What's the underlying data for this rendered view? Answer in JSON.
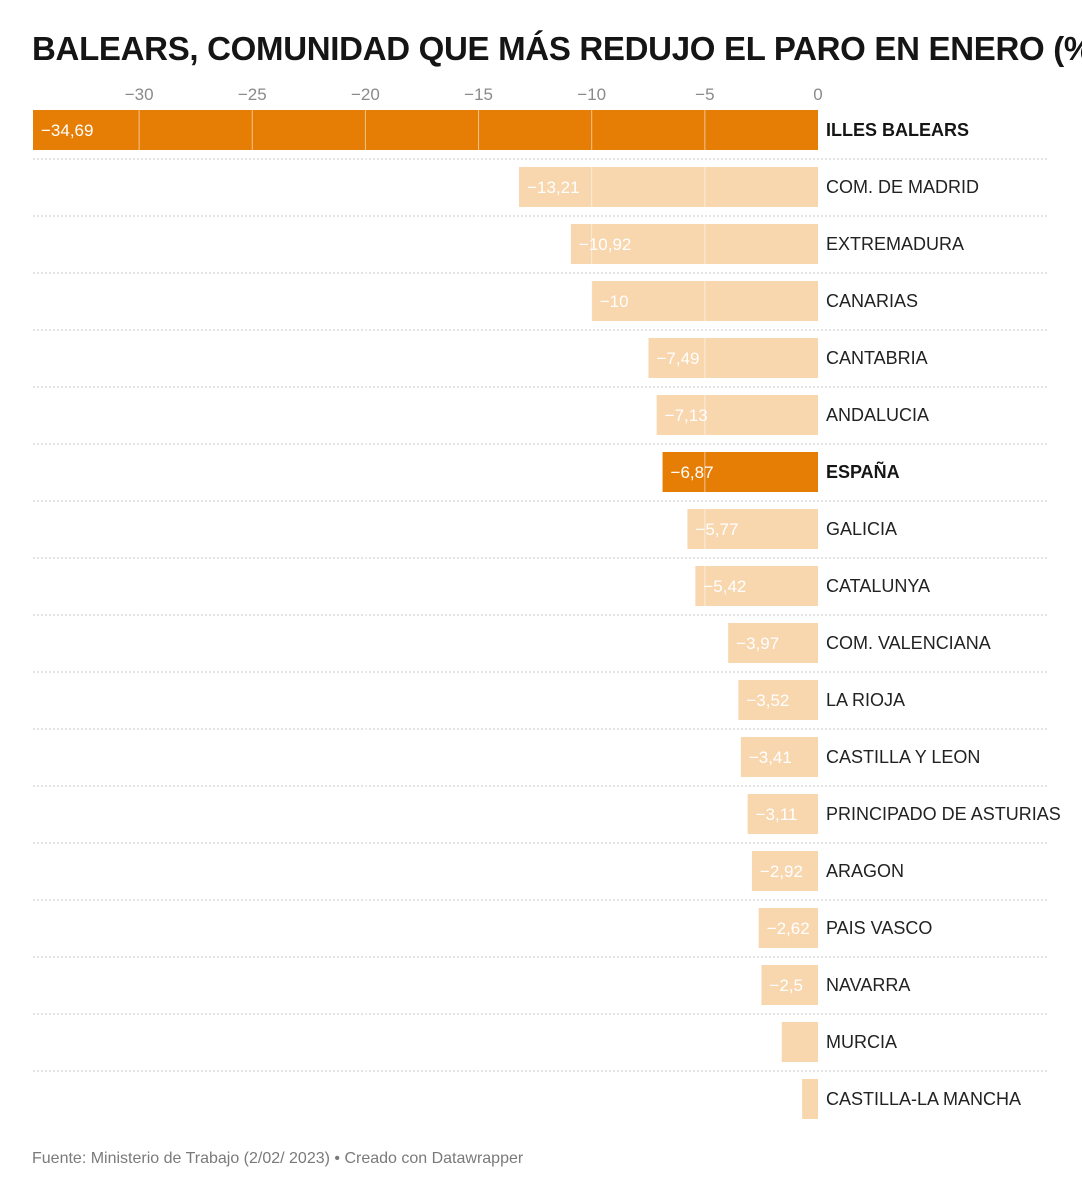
{
  "chart_data": {
    "type": "bar",
    "orientation": "horizontal",
    "title": "BALEARS, COMUNIDAD QUE MÁS REDUJO EL PARO EN ENERO (%)",
    "xlim": [
      -34.69,
      0
    ],
    "x_ticks": [
      -30,
      -25,
      -20,
      -15,
      -10,
      -5,
      0
    ],
    "x_tick_labels": [
      "−30",
      "−25",
      "−20",
      "−15",
      "−10",
      "−5",
      "0"
    ],
    "axis_position": "top",
    "grid": true,
    "categories": [
      "ILLES BALEARS",
      "COM. DE MADRID",
      "EXTREMADURA",
      "CANARIAS",
      "CANTABRIA",
      "ANDALUCIA",
      "ESPAÑA",
      "GALICIA",
      "CATALUNYA",
      "COM. VALENCIANA",
      "LA RIOJA",
      "CASTILLA Y LEON",
      "PRINCIPADO DE ASTURIAS",
      "ARAGON",
      "PAIS VASCO",
      "NAVARRA",
      "MURCIA",
      "CASTILLA-LA MANCHA"
    ],
    "values": [
      -34.69,
      -13.21,
      -10.92,
      -10,
      -7.49,
      -7.13,
      -6.87,
      -5.77,
      -5.42,
      -3.97,
      -3.52,
      -3.41,
      -3.11,
      -2.92,
      -2.62,
      -2.5,
      -1.6,
      -0.7
    ],
    "value_labels": [
      "−34,69",
      "−13,21",
      "−10,92",
      "−10",
      "−7,49",
      "−7,13",
      "−6,87",
      "−5,77",
      "−5,42",
      "−3,97",
      "−3,52",
      "−3,41",
      "−3,11",
      "−2,92",
      "−2,62",
      "−2,5",
      "",
      ""
    ],
    "highlighted": [
      "ILLES BALEARS",
      "ESPAÑA"
    ],
    "colors": {
      "highlight": "#e67e06",
      "default": "#f8d6ae",
      "grid": "#ffffff",
      "separator": "#c8c8c8"
    }
  },
  "footer": "Fuente: Ministerio de Trabajo (2/02/ 2023) • Creado con Datawrapper"
}
